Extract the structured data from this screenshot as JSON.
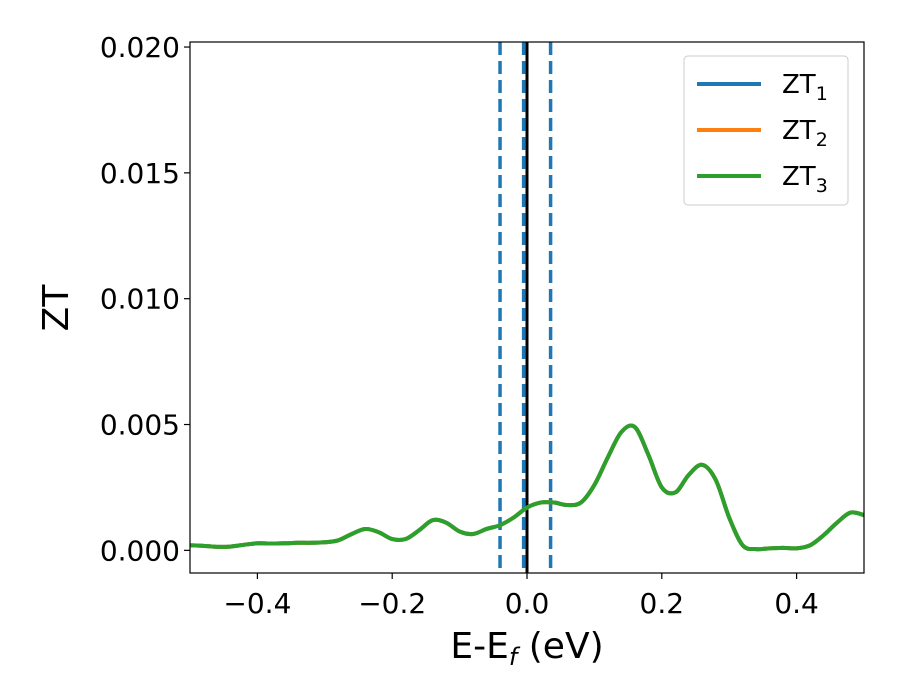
{
  "chart_data": {
    "type": "line",
    "xlabel": "E-E",
    "xlabel_sub": "f",
    "xlabel_suffix": " (eV)",
    "ylabel": "ZT",
    "xlim": [
      -0.5,
      0.5
    ],
    "ylim": [
      -0.0009,
      0.0202
    ],
    "xticks": [
      -0.4,
      -0.2,
      0.0,
      0.2,
      0.4
    ],
    "xtick_labels": [
      "−0.4",
      "−0.2",
      "0.0",
      "0.2",
      "0.4"
    ],
    "yticks": [
      0.0,
      0.005,
      0.01,
      0.015,
      0.02
    ],
    "ytick_labels": [
      "0.000",
      "0.005",
      "0.010",
      "0.015",
      "0.020"
    ],
    "grid": false,
    "legend_position": "top-right",
    "vertical_lines": [
      {
        "x": -0.04,
        "style": "dashed",
        "color": "#1f77b4"
      },
      {
        "x": -0.005,
        "style": "dashed",
        "color": "#1f77b4"
      },
      {
        "x": 0.0,
        "style": "solid",
        "color": "#000000"
      },
      {
        "x": 0.035,
        "style": "dashed",
        "color": "#1f77b4"
      }
    ],
    "x": [
      -0.5,
      -0.48,
      -0.46,
      -0.44,
      -0.42,
      -0.4,
      -0.38,
      -0.36,
      -0.34,
      -0.32,
      -0.3,
      -0.28,
      -0.26,
      -0.24,
      -0.22,
      -0.2,
      -0.18,
      -0.16,
      -0.14,
      -0.12,
      -0.1,
      -0.08,
      -0.06,
      -0.04,
      -0.02,
      0.0,
      0.02,
      0.04,
      0.06,
      0.08,
      0.1,
      0.12,
      0.14,
      0.16,
      0.18,
      0.2,
      0.22,
      0.24,
      0.26,
      0.28,
      0.3,
      0.32,
      0.34,
      0.36,
      0.38,
      0.4,
      0.42,
      0.44,
      0.46,
      0.48,
      0.5
    ],
    "series": [
      {
        "name": "ZT",
        "name_sub": "1",
        "color": "#1f77b4",
        "values": [
          0.0002,
          0.00018,
          0.00014,
          0.00015,
          0.00022,
          0.00028,
          0.00027,
          0.00028,
          0.0003,
          0.0003,
          0.00032,
          0.0004,
          0.00065,
          0.00085,
          0.00072,
          0.00045,
          0.00045,
          0.0008,
          0.0012,
          0.0011,
          0.00075,
          0.00065,
          0.00085,
          0.001,
          0.0013,
          0.0017,
          0.0019,
          0.0019,
          0.0018,
          0.0019,
          0.0026,
          0.0037,
          0.0047,
          0.0049,
          0.0038,
          0.0025,
          0.0023,
          0.003,
          0.0034,
          0.0028,
          0.0013,
          0.0002,
          5e-05,
          8e-05,
          0.0001,
          8e-05,
          0.0002,
          0.0006,
          0.0011,
          0.0015,
          0.0014
        ]
      },
      {
        "name": "ZT",
        "name_sub": "2",
        "color": "#ff7f0e",
        "values": [
          0.0002,
          0.00018,
          0.00014,
          0.00015,
          0.00022,
          0.00028,
          0.00027,
          0.00028,
          0.0003,
          0.0003,
          0.00032,
          0.0004,
          0.00065,
          0.00085,
          0.00072,
          0.00045,
          0.00045,
          0.0008,
          0.0012,
          0.0011,
          0.00075,
          0.00065,
          0.00085,
          0.001,
          0.0013,
          0.0017,
          0.0019,
          0.0019,
          0.0018,
          0.0019,
          0.0026,
          0.0037,
          0.0047,
          0.0049,
          0.0038,
          0.0025,
          0.0023,
          0.003,
          0.0034,
          0.0028,
          0.0013,
          0.0002,
          5e-05,
          8e-05,
          0.0001,
          8e-05,
          0.0002,
          0.0006,
          0.0011,
          0.0015,
          0.0014
        ]
      },
      {
        "name": "ZT",
        "name_sub": "3",
        "color": "#2ca02c",
        "values": [
          0.0002,
          0.00018,
          0.00014,
          0.00015,
          0.00022,
          0.00028,
          0.00027,
          0.00028,
          0.0003,
          0.0003,
          0.00032,
          0.0004,
          0.00065,
          0.00085,
          0.00072,
          0.00045,
          0.00045,
          0.0008,
          0.0012,
          0.0011,
          0.00075,
          0.00065,
          0.00085,
          0.001,
          0.0013,
          0.0017,
          0.0019,
          0.0019,
          0.0018,
          0.0019,
          0.0026,
          0.0037,
          0.0047,
          0.0049,
          0.0038,
          0.0025,
          0.0023,
          0.003,
          0.0034,
          0.0028,
          0.0013,
          0.0002,
          5e-05,
          8e-05,
          0.0001,
          8e-05,
          0.0002,
          0.0006,
          0.0011,
          0.0015,
          0.0014
        ]
      }
    ]
  }
}
